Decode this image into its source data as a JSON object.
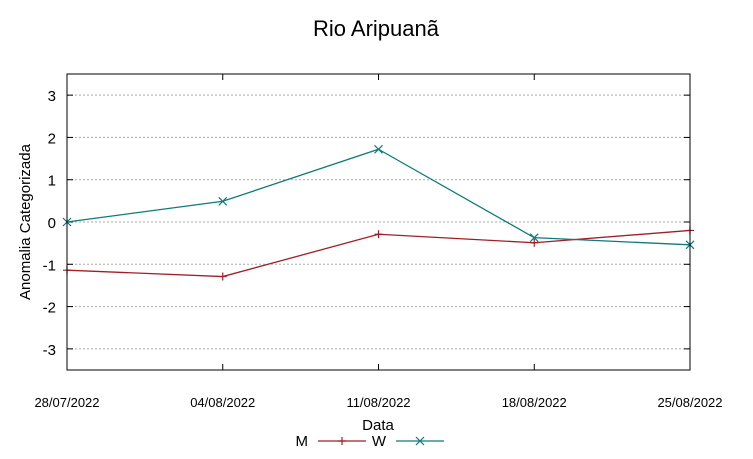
{
  "chart_data": {
    "type": "line",
    "title": "Rio Aripuanã",
    "xlabel": "Data",
    "ylabel": "Anomalia Categorizada",
    "categories": [
      "28/07/2022",
      "04/08/2022",
      "11/08/2022",
      "18/08/2022",
      "25/08/2022"
    ],
    "ylim": [
      -3.5,
      3.5
    ],
    "yticks": [
      -3,
      -2,
      -1,
      0,
      1,
      2,
      3
    ],
    "grid": true,
    "legend_position": "bottom",
    "series": [
      {
        "name": "M",
        "color": "#a01e28",
        "marker": "plus",
        "values": [
          -1.14,
          -1.29,
          -0.29,
          -0.49,
          -0.2
        ]
      },
      {
        "name": "W",
        "color": "#0f7a7a",
        "marker": "x",
        "values": [
          0.0,
          0.49,
          1.72,
          -0.37,
          -0.54
        ]
      }
    ]
  }
}
